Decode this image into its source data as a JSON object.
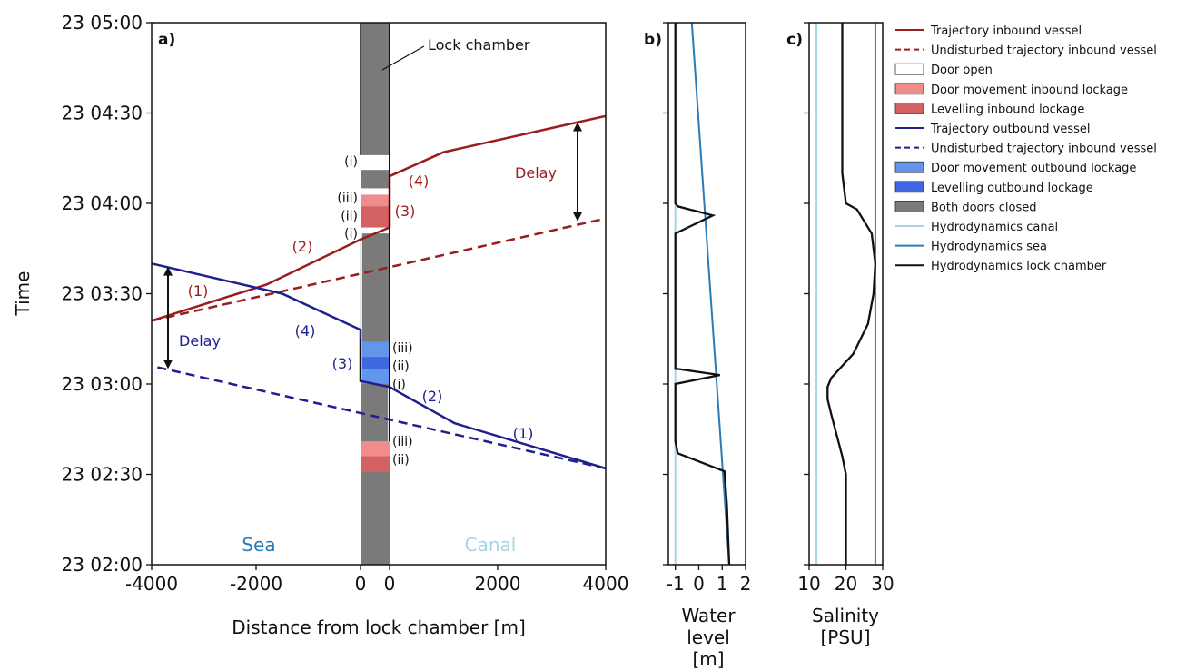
{
  "chart_data": [
    {
      "panel": "a)",
      "type": "line",
      "xlabel": "Distance from lock chamber [m]",
      "ylabel": "Time",
      "xlim": [
        -4000,
        4000
      ],
      "ylim": [
        "23 02:00",
        "23 05:00"
      ],
      "x_ticks": [
        "-4000",
        "-2000",
        "0",
        "0",
        "2000",
        "4000"
      ],
      "y_ticks": [
        "23 02:00",
        "23 02:30",
        "23 03:00",
        "23 03:30",
        "23 04:00",
        "23 04:30",
        "23 05:00"
      ],
      "region_labels": {
        "sea": "Sea",
        "canal": "Canal",
        "lock": "Lock chamber"
      },
      "series": [
        {
          "name": "Trajectory inbound vessel",
          "color": "#9b1c1c",
          "dash": "solid",
          "x": [
            -4000,
            -1800,
            0,
            0,
            0,
            1000,
            4000
          ],
          "y": [
            "23 03:21",
            "23 03:33",
            "23 03:48",
            "23 03:52",
            "23 04:09",
            "23 04:17",
            "23 04:29"
          ]
        },
        {
          "name": "Undisturbed trajectory inbound vessel",
          "color": "#9b1c1c",
          "dash": "dashed",
          "x": [
            -4000,
            4000
          ],
          "y": [
            "23 03:21",
            "23 03:55"
          ]
        },
        {
          "name": "Trajectory outbound vessel",
          "color": "#1f1f8f",
          "dash": "solid",
          "x": [
            4000,
            1200,
            0,
            0,
            0,
            -1500,
            -4000
          ],
          "y": [
            "23 02:32",
            "23 02:47",
            "23 02:59",
            "23 03:01",
            "23 03:18",
            "23 03:30",
            "23 03:40"
          ]
        },
        {
          "name": "Undisturbed trajectory inbound vessel",
          "color": "#1f1f8f",
          "dash": "dashed",
          "x": [
            4000,
            -4000
          ],
          "y": [
            "23 02:32",
            "23 03:06"
          ]
        }
      ],
      "annotations": [
        {
          "text": "(1)",
          "color": "#9b1c1c"
        },
        {
          "text": "(2)",
          "color": "#9b1c1c"
        },
        {
          "text": "(3)",
          "color": "#9b1c1c"
        },
        {
          "text": "(4)",
          "color": "#9b1c1c"
        },
        {
          "text": "(1)",
          "color": "#1f1f8f"
        },
        {
          "text": "(2)",
          "color": "#1f1f8f"
        },
        {
          "text": "(3)",
          "color": "#1f1f8f"
        },
        {
          "text": "(4)",
          "color": "#1f1f8f"
        },
        {
          "text": "Delay",
          "color": "#9b1c1c"
        },
        {
          "text": "Delay",
          "color": "#1f1f8f"
        }
      ],
      "lock_bands": [
        {
          "label": "(iii)",
          "type": "Door movement inbound lockage",
          "start": "23 02:31",
          "end": "23 02:41"
        },
        {
          "label": "(ii)",
          "type": "Levelling inbound lockage",
          "start": "23 02:31",
          "end": "23 02:36"
        },
        {
          "label": "(i)",
          "type": "Door movement outbound lockage",
          "start": "23 03:00",
          "end": "23 03:05"
        },
        {
          "label": "(ii)",
          "type": "Levelling outbound lockage",
          "start": "23 03:05",
          "end": "23 03:09"
        },
        {
          "label": "(iii)",
          "type": "Door movement outbound lockage",
          "start": "23 03:09",
          "end": "23 03:14"
        },
        {
          "label": "(i)",
          "type": "Door open",
          "start": "23 03:50",
          "end": "23 03:52"
        },
        {
          "label": "(ii)",
          "type": "Levelling inbound lockage",
          "start": "23 03:52",
          "end": "23 03:59"
        },
        {
          "label": "(iii)",
          "type": "Door movement inbound lockage",
          "start": "23 03:59",
          "end": "23 04:05"
        },
        {
          "label": "(i)",
          "type": "Door movement outbound lockage",
          "start": "23 04:12",
          "end": "23 04:16"
        }
      ]
    },
    {
      "panel": "b)",
      "type": "line",
      "xlabel": "Water level [m]",
      "xlim": [
        -1.3,
        2
      ],
      "x_ticks": [
        "-1",
        "0",
        "1",
        "2"
      ],
      "series": [
        {
          "name": "Hydrodynamics canal",
          "color": "#a6d4e6",
          "x": [
            -1,
            -1
          ],
          "y": [
            "23 02:00",
            "23 05:00"
          ]
        },
        {
          "name": "Hydrodynamics sea",
          "color": "#2b7bb9",
          "x": [
            1.3,
            -0.3
          ],
          "y": [
            "23 02:00",
            "23 05:00"
          ]
        },
        {
          "name": "Hydrodynamics lock chamber",
          "color": "#111111",
          "x": [
            1.3,
            1.2,
            1.1,
            -0.9,
            -1.0,
            -1.0,
            0.9,
            -0.9,
            -1.0,
            -1.0,
            0.6,
            -0.9,
            -1.0,
            -1.0
          ],
          "y": [
            "23 02:00",
            "23 02:20",
            "23 02:31",
            "23 02:37",
            "23 02:41",
            "23 03:00",
            "23 03:03",
            "23 03:05",
            "23 03:05",
            "23 03:50",
            "23 03:56",
            "23 03:59",
            "23 04:00",
            "23 05:00"
          ]
        }
      ]
    },
    {
      "panel": "c)",
      "type": "line",
      "xlabel": "Salinity [PSU]",
      "xlim": [
        10,
        30
      ],
      "x_ticks": [
        "10",
        "20",
        "30"
      ],
      "series": [
        {
          "name": "Hydrodynamics canal",
          "color": "#a6d4e6",
          "x": [
            12,
            12
          ],
          "y": [
            "23 02:00",
            "23 05:00"
          ]
        },
        {
          "name": "Hydrodynamics sea",
          "color": "#2b7bb9",
          "x": [
            28,
            28
          ],
          "y": [
            "23 02:00",
            "23 05:00"
          ]
        },
        {
          "name": "Hydrodynamics lock chamber",
          "color": "#111111",
          "x": [
            20,
            20,
            19,
            16,
            15,
            15,
            16,
            22,
            26,
            27.5,
            28,
            27,
            23,
            20,
            19,
            19
          ],
          "y": [
            "23 02:00",
            "23 02:30",
            "23 02:36",
            "23 02:50",
            "23 02:55",
            "23 02:59",
            "23 03:02",
            "23 03:10",
            "23 03:20",
            "23 03:30",
            "23 03:40",
            "23 03:50",
            "23 03:58",
            "23 04:00",
            "23 04:10",
            "23 05:00"
          ]
        }
      ]
    }
  ],
  "legend": {
    "placement": "right",
    "items": [
      {
        "label": "Trajectory inbound vessel",
        "kind": "line",
        "color": "#9b1c1c",
        "dash": "solid"
      },
      {
        "label": "Undisturbed trajectory inbound vessel",
        "kind": "line",
        "color": "#9b1c1c",
        "dash": "dashed"
      },
      {
        "label": "Door open",
        "kind": "patch",
        "color": "#ffffff"
      },
      {
        "label": "Door movement inbound lockage",
        "kind": "patch",
        "color": "#f08c8c"
      },
      {
        "label": "Levelling inbound lockage",
        "kind": "patch",
        "color": "#d46262"
      },
      {
        "label": "Trajectory outbound vessel",
        "kind": "line",
        "color": "#1f1f8f",
        "dash": "solid"
      },
      {
        "label": "Undisturbed trajectory inbound vessel",
        "kind": "line",
        "color": "#1f1f8f",
        "dash": "dashed"
      },
      {
        "label": "Door movement outbound lockage",
        "kind": "patch",
        "color": "#6495ed"
      },
      {
        "label": "Levelling outbound lockage",
        "kind": "patch",
        "color": "#3f68e0"
      },
      {
        "label": "Both doors closed",
        "kind": "patch",
        "color": "#7a7a7a"
      },
      {
        "label": "Hydrodynamics canal",
        "kind": "line",
        "color": "#a6d4e6",
        "dash": "solid"
      },
      {
        "label": "Hydrodynamics sea",
        "kind": "line",
        "color": "#2b7bb9",
        "dash": "solid"
      },
      {
        "label": "Hydrodynamics lock chamber",
        "kind": "line",
        "color": "#111111",
        "dash": "solid"
      }
    ]
  }
}
